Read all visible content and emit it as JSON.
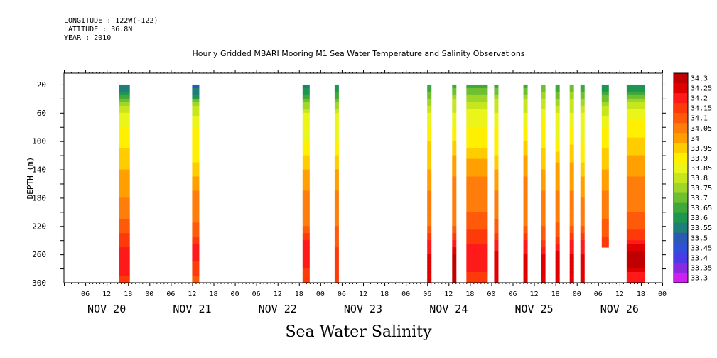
{
  "header": {
    "longitude": "LONGITUDE : 122W(-122)",
    "latitude": "LATITUDE : 36.8N",
    "year": "YEAR : 2010"
  },
  "chart_data": {
    "type": "heatmap",
    "title": "Hourly Gridded MBARI Mooring M1 Sea Water Temperature and Salinity Observations",
    "subtitle": "Sea Water Salinity",
    "ylabel": "DEPTH (m)",
    "ylim": [
      300,
      0
    ],
    "yticks": [
      20,
      60,
      100,
      140,
      180,
      220,
      260,
      300
    ],
    "xlim_hours": [
      0,
      168
    ],
    "x_hour_ticks": [
      "06",
      "12",
      "18",
      "00",
      "06",
      "12",
      "18",
      "00",
      "06",
      "12",
      "18",
      "00",
      "06",
      "12",
      "18",
      "00",
      "06",
      "12",
      "18",
      "00",
      "06",
      "12",
      "18",
      "00",
      "06",
      "12",
      "18",
      "00"
    ],
    "x_day_labels": [
      "NOV 20",
      "NOV 21",
      "NOV 22",
      "NOV 23",
      "NOV 24",
      "NOV 25",
      "NOV 26"
    ],
    "colorbar": {
      "levels": [
        "34.3",
        "34.25",
        "34.2",
        "34.15",
        "34.1",
        "34.05",
        "34",
        "33.95",
        "33.9",
        "33.85",
        "33.8",
        "33.75",
        "33.7",
        "33.65",
        "33.6",
        "33.55",
        "33.5",
        "33.45",
        "33.4",
        "33.35",
        "33.3"
      ],
      "colors": [
        "#c00000",
        "#e00000",
        "#ff1a1a",
        "#ff3a0a",
        "#ff5a0a",
        "#ff7d0a",
        "#ffa000",
        "#ffcc00",
        "#ffef00",
        "#ecf519",
        "#c8e61e",
        "#a0d628",
        "#6fc030",
        "#3fa83a",
        "#1e9650",
        "#1f7f78",
        "#2a5ab4",
        "#3050d8",
        "#4a3ae8",
        "#8a2ae0",
        "#d020f0"
      ]
    },
    "series": [
      {
        "start": 15.5,
        "end": 18.5,
        "profile": [
          [
            20,
            33.5
          ],
          [
            30,
            33.55
          ],
          [
            45,
            33.7
          ],
          [
            60,
            33.8
          ],
          [
            80,
            33.85
          ],
          [
            110,
            33.9
          ],
          [
            140,
            33.95
          ],
          [
            180,
            34.0
          ],
          [
            210,
            34.05
          ],
          [
            230,
            34.1
          ],
          [
            250,
            34.15
          ],
          [
            270,
            34.2
          ],
          [
            290,
            34.15
          ],
          [
            300,
            34.1
          ]
        ]
      },
      {
        "start": 36.0,
        "end": 38.0,
        "profile": [
          [
            20,
            33.45
          ],
          [
            35,
            33.55
          ],
          [
            50,
            33.75
          ],
          [
            80,
            33.85
          ],
          [
            130,
            33.9
          ],
          [
            150,
            33.95
          ],
          [
            170,
            34.0
          ],
          [
            215,
            34.05
          ],
          [
            235,
            34.1
          ],
          [
            255,
            34.2
          ],
          [
            270,
            34.15
          ],
          [
            290,
            34.1
          ],
          [
            300,
            34.05
          ]
        ]
      },
      {
        "start": 67.0,
        "end": 69.0,
        "profile": [
          [
            20,
            33.5
          ],
          [
            35,
            33.6
          ],
          [
            60,
            33.8
          ],
          [
            100,
            33.85
          ],
          [
            140,
            33.95
          ],
          [
            170,
            34.0
          ],
          [
            220,
            34.05
          ],
          [
            240,
            34.15
          ],
          [
            260,
            34.2
          ],
          [
            280,
            34.15
          ],
          [
            300,
            34.1
          ]
        ]
      },
      {
        "start": 76.0,
        "end": 77.2,
        "profile": [
          [
            20,
            33.55
          ],
          [
            40,
            33.65
          ],
          [
            60,
            33.8
          ],
          [
            100,
            33.85
          ],
          [
            140,
            33.95
          ],
          [
            170,
            34.0
          ],
          [
            220,
            34.05
          ],
          [
            250,
            34.1
          ],
          [
            280,
            34.15
          ],
          [
            300,
            34.1
          ]
        ]
      },
      {
        "start": 102.0,
        "end": 103.2,
        "profile": [
          [
            20,
            33.6
          ],
          [
            40,
            33.7
          ],
          [
            60,
            33.8
          ],
          [
            100,
            33.9
          ],
          [
            140,
            33.95
          ],
          [
            170,
            34.0
          ],
          [
            220,
            34.05
          ],
          [
            240,
            34.15
          ],
          [
            260,
            34.2
          ],
          [
            280,
            34.25
          ],
          [
            300,
            34.2
          ]
        ]
      },
      {
        "start": 109.0,
        "end": 110.2,
        "profile": [
          [
            20,
            33.6
          ],
          [
            40,
            33.75
          ],
          [
            80,
            33.85
          ],
          [
            120,
            33.95
          ],
          [
            150,
            34.0
          ],
          [
            220,
            34.05
          ],
          [
            240,
            34.15
          ],
          [
            260,
            34.25
          ],
          [
            280,
            34.3
          ],
          [
            300,
            34.25
          ]
        ]
      },
      {
        "start": 113.0,
        "end": 119.0,
        "profile": [
          [
            20,
            33.6
          ],
          [
            35,
            33.7
          ],
          [
            55,
            33.8
          ],
          [
            80,
            33.85
          ],
          [
            110,
            33.9
          ],
          [
            125,
            33.95
          ],
          [
            150,
            34.0
          ],
          [
            200,
            34.05
          ],
          [
            225,
            34.1
          ],
          [
            245,
            34.15
          ],
          [
            265,
            34.2
          ],
          [
            285,
            34.15
          ],
          [
            300,
            34.1
          ]
        ]
      },
      {
        "start": 120.8,
        "end": 122.0,
        "profile": [
          [
            20,
            33.6
          ],
          [
            40,
            33.75
          ],
          [
            80,
            33.85
          ],
          [
            120,
            33.9
          ],
          [
            140,
            33.95
          ],
          [
            170,
            34.0
          ],
          [
            210,
            34.05
          ],
          [
            230,
            34.1
          ],
          [
            255,
            34.2
          ],
          [
            275,
            34.25
          ],
          [
            300,
            34.2
          ]
        ]
      },
      {
        "start": 129.0,
        "end": 130.2,
        "profile": [
          [
            20,
            33.6
          ],
          [
            40,
            33.75
          ],
          [
            80,
            33.85
          ],
          [
            120,
            33.95
          ],
          [
            150,
            34.0
          ],
          [
            220,
            34.05
          ],
          [
            240,
            34.15
          ],
          [
            260,
            34.2
          ],
          [
            280,
            34.25
          ],
          [
            300,
            34.2
          ]
        ]
      },
      {
        "start": 134.0,
        "end": 135.2,
        "profile": [
          [
            20,
            33.65
          ],
          [
            40,
            33.75
          ],
          [
            70,
            33.85
          ],
          [
            110,
            33.9
          ],
          [
            140,
            33.95
          ],
          [
            170,
            34.0
          ],
          [
            220,
            34.05
          ],
          [
            240,
            34.1
          ],
          [
            260,
            34.2
          ],
          [
            280,
            34.25
          ],
          [
            300,
            34.2
          ]
        ]
      },
      {
        "start": 138.0,
        "end": 139.2,
        "profile": [
          [
            20,
            33.6
          ],
          [
            40,
            33.7
          ],
          [
            60,
            33.8
          ],
          [
            100,
            33.85
          ],
          [
            130,
            33.95
          ],
          [
            170,
            34.0
          ],
          [
            215,
            34.05
          ],
          [
            235,
            34.1
          ],
          [
            255,
            34.2
          ],
          [
            275,
            34.25
          ],
          [
            300,
            34.2
          ]
        ]
      },
      {
        "start": 142.0,
        "end": 143.2,
        "profile": [
          [
            20,
            33.65
          ],
          [
            40,
            33.75
          ],
          [
            80,
            33.85
          ],
          [
            130,
            33.95
          ],
          [
            170,
            34.0
          ],
          [
            220,
            34.05
          ],
          [
            240,
            34.15
          ],
          [
            260,
            34.2
          ],
          [
            280,
            34.25
          ],
          [
            300,
            34.2
          ]
        ]
      },
      {
        "start": 145.0,
        "end": 146.2,
        "profile": [
          [
            20,
            33.6
          ],
          [
            40,
            33.7
          ],
          [
            60,
            33.8
          ],
          [
            100,
            33.85
          ],
          [
            130,
            33.9
          ],
          [
            150,
            33.95
          ],
          [
            180,
            34.0
          ],
          [
            220,
            34.05
          ],
          [
            240,
            34.15
          ],
          [
            260,
            34.2
          ],
          [
            280,
            34.25
          ],
          [
            300,
            34.2
          ]
        ]
      },
      {
        "start": 151.0,
        "end": 153.0,
        "profile": [
          [
            20,
            33.55
          ],
          [
            30,
            33.6
          ],
          [
            50,
            33.75
          ],
          [
            80,
            33.85
          ],
          [
            110,
            33.9
          ],
          [
            140,
            33.95
          ],
          [
            170,
            34.0
          ],
          [
            210,
            34.05
          ],
          [
            235,
            34.1
          ],
          [
            250,
            34.15
          ]
        ]
      },
      {
        "start": 158.0,
        "end": 163.2,
        "profile": [
          [
            20,
            33.55
          ],
          [
            30,
            33.6
          ],
          [
            45,
            33.75
          ],
          [
            70,
            33.85
          ],
          [
            95,
            33.9
          ],
          [
            120,
            33.95
          ],
          [
            150,
            34.0
          ],
          [
            200,
            34.05
          ],
          [
            225,
            34.1
          ],
          [
            240,
            34.15
          ],
          [
            255,
            34.25
          ],
          [
            270,
            34.3
          ],
          [
            285,
            34.2
          ],
          [
            300,
            34.15
          ]
        ]
      }
    ]
  }
}
